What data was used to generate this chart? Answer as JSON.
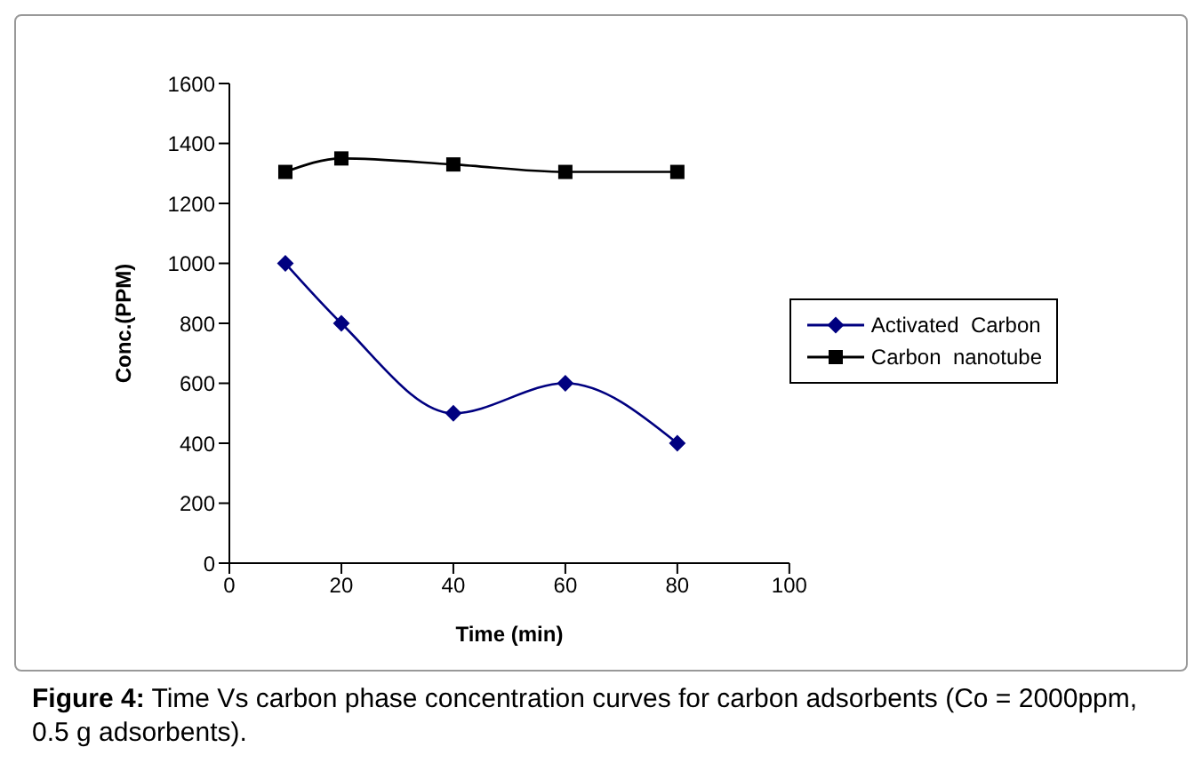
{
  "chart_data": {
    "type": "line",
    "xlabel": "Time (min)",
    "ylabel": "Conc.(PPM)",
    "x": [
      10,
      20,
      40,
      60,
      80
    ],
    "series": [
      {
        "name": "Activated  Carbon",
        "color": "#000080",
        "values": [
          1000,
          800,
          500,
          600,
          400
        ],
        "marker": "diamond"
      },
      {
        "name": "Carbon  nanotube",
        "color": "#000000",
        "values": [
          1305,
          1350,
          1330,
          1305,
          1305
        ],
        "marker": "square"
      }
    ],
    "xlim": [
      0,
      100
    ],
    "xticks": [
      0,
      20,
      40,
      60,
      80,
      100
    ],
    "ylim": [
      0,
      1600
    ],
    "yticks": [
      0,
      200,
      400,
      600,
      800,
      1000,
      1200,
      1400,
      1600
    ],
    "grid": false,
    "legend": "right",
    "line_style": "solid",
    "annotations": [
      "Figure 4: Time Vs carbon phase concentration curves for carbon adsorbents (Co = 2000ppm, 0.5 g adsorbents)."
    ]
  }
}
